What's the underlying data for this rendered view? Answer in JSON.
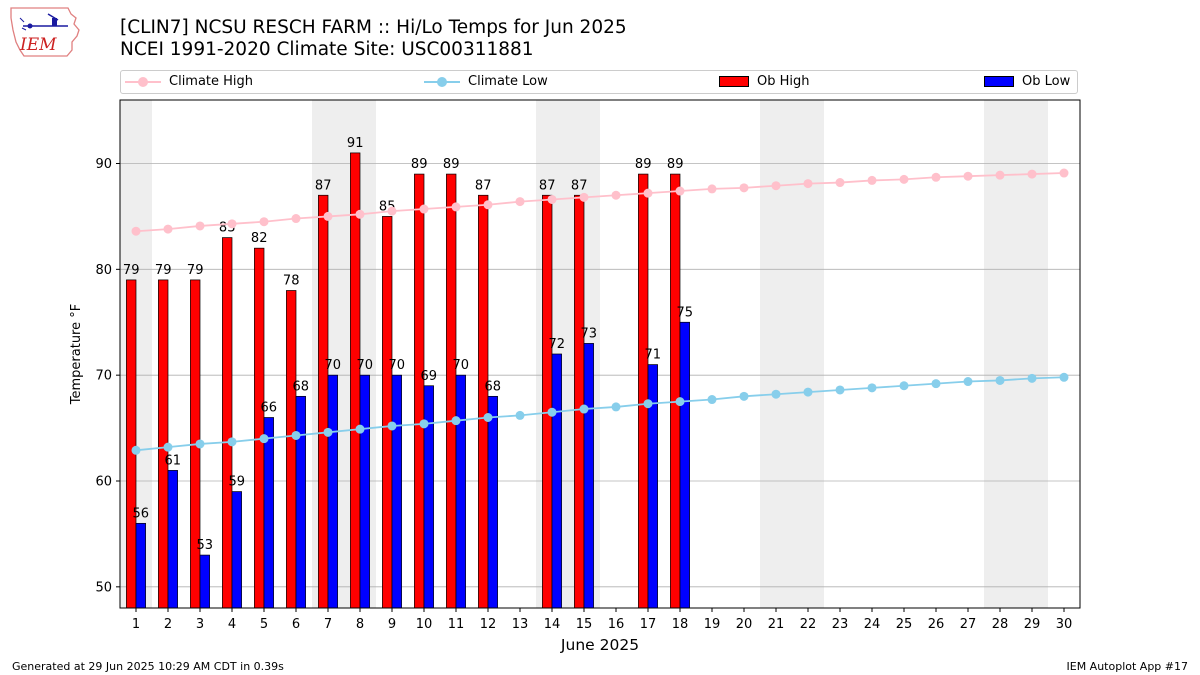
{
  "header": {
    "title_line1": "[CLIN7] NCSU RESCH FARM :: Hi/Lo Temps for Jun 2025",
    "title_line2": "NCEI 1991-2020 Climate Site: USC00311881",
    "logo_text": "IEM"
  },
  "legend": {
    "climate_high": "Climate High",
    "climate_low": "Climate Low",
    "ob_high": "Ob High",
    "ob_low": "Ob Low",
    "placement": "top"
  },
  "footer": {
    "generated": "Generated at 29 Jun 2025 10:29 AM CDT in 0.39s",
    "app": "IEM Autoplot App #17"
  },
  "colors": {
    "climate_high": "#ffc0cb",
    "climate_low": "#87ceeb",
    "ob_high": "#ff0000",
    "ob_low": "#0000ff",
    "weekend_shade": "#eeeeee",
    "grid": "#b0b0b0"
  },
  "chart_data": {
    "type": "bar",
    "xlabel": "June 2025",
    "ylabel": "Temperature °F",
    "ylim": [
      48,
      96
    ],
    "yticks": [
      50,
      60,
      70,
      80,
      90
    ],
    "grid": "horizontal",
    "days": [
      1,
      2,
      3,
      4,
      5,
      6,
      7,
      8,
      9,
      10,
      11,
      12,
      13,
      14,
      15,
      16,
      17,
      18,
      19,
      20,
      21,
      22,
      23,
      24,
      25,
      26,
      27,
      28,
      29,
      30
    ],
    "weekend_spans": [
      [
        1,
        1
      ],
      [
        7,
        8
      ],
      [
        14,
        15
      ],
      [
        21,
        22
      ],
      [
        28,
        29
      ]
    ],
    "series": [
      {
        "name": "Ob High",
        "kind": "bar",
        "values": [
          79,
          79,
          79,
          83,
          82,
          78,
          87,
          91,
          85,
          89,
          89,
          87,
          null,
          87,
          87,
          null,
          89,
          89,
          null,
          null,
          null,
          null,
          null,
          null,
          null,
          null,
          null,
          null,
          null,
          null
        ]
      },
      {
        "name": "Ob Low",
        "kind": "bar",
        "values": [
          56,
          61,
          53,
          59,
          66,
          68,
          70,
          70,
          70,
          69,
          70,
          68,
          null,
          72,
          73,
          null,
          71,
          75,
          null,
          null,
          null,
          null,
          null,
          null,
          null,
          null,
          null,
          null,
          null,
          null
        ]
      },
      {
        "name": "Climate High",
        "kind": "line",
        "values": [
          83.6,
          83.8,
          84.1,
          84.3,
          84.5,
          84.8,
          85.0,
          85.2,
          85.5,
          85.7,
          85.9,
          86.1,
          86.4,
          86.6,
          86.8,
          87.0,
          87.2,
          87.4,
          87.6,
          87.7,
          87.9,
          88.1,
          88.2,
          88.4,
          88.5,
          88.7,
          88.8,
          88.9,
          89.0,
          89.1
        ]
      },
      {
        "name": "Climate Low",
        "kind": "line",
        "values": [
          62.9,
          63.2,
          63.5,
          63.7,
          64.0,
          64.3,
          64.6,
          64.9,
          65.2,
          65.4,
          65.7,
          66.0,
          66.2,
          66.5,
          66.8,
          67.0,
          67.3,
          67.5,
          67.7,
          68.0,
          68.2,
          68.4,
          68.6,
          68.8,
          69.0,
          69.2,
          69.4,
          69.5,
          69.7,
          69.8
        ]
      }
    ]
  }
}
